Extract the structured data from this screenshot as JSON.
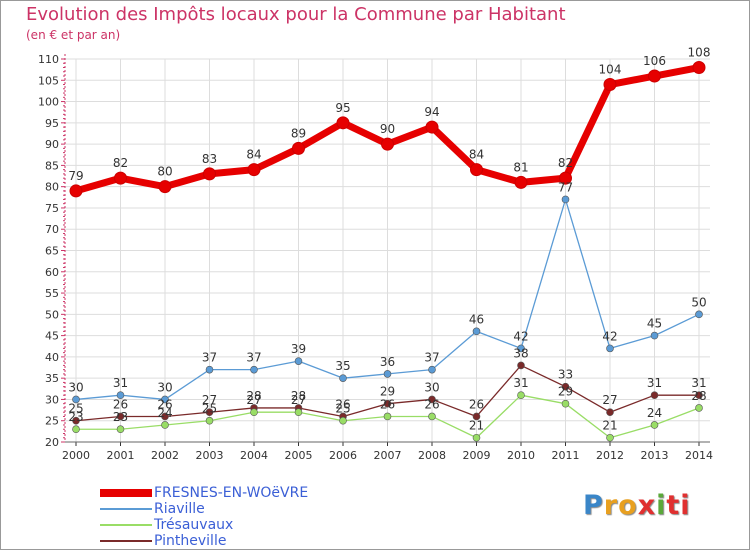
{
  "chart_data": {
    "type": "line",
    "title": "Evolution des Impôts locaux pour la Commune par Habitant",
    "subtitle": "(en € et par an)",
    "xlabel": "",
    "ylabel": "",
    "ylim": [
      20,
      110
    ],
    "yticks": [
      20,
      25,
      30,
      35,
      40,
      45,
      50,
      55,
      60,
      65,
      70,
      75,
      80,
      85,
      90,
      95,
      100,
      105,
      110
    ],
    "categories": [
      "2000",
      "2001",
      "2002",
      "2003",
      "2004",
      "2005",
      "2006",
      "2007",
      "2008",
      "2009",
      "2010",
      "2011",
      "2012",
      "2013",
      "2014"
    ],
    "legend_position": "bottom-left",
    "series": [
      {
        "name": "FRESNES-EN-WOëVRE",
        "color": "#e60000",
        "values": [
          79,
          82,
          80,
          83,
          84,
          89,
          95,
          90,
          94,
          84,
          81,
          82,
          104,
          106,
          108
        ]
      },
      {
        "name": "Riaville",
        "color": "#5b9bd5",
        "values": [
          30,
          31,
          30,
          37,
          37,
          39,
          35,
          36,
          37,
          46,
          42,
          77,
          42,
          45,
          50
        ]
      },
      {
        "name": "Trésauvaux",
        "color": "#99dd66",
        "values": [
          23,
          23,
          24,
          25,
          27,
          27,
          25,
          26,
          26,
          21,
          31,
          29,
          21,
          24,
          28
        ]
      },
      {
        "name": "Pintheville",
        "color": "#7a2a2a",
        "values": [
          25,
          26,
          26,
          27,
          28,
          28,
          26,
          29,
          30,
          26,
          38,
          33,
          27,
          31,
          31
        ]
      }
    ]
  },
  "logo": {
    "text": "Proxiti",
    "letters": [
      "P",
      "r",
      "o",
      "x",
      "i",
      "ti"
    ]
  }
}
